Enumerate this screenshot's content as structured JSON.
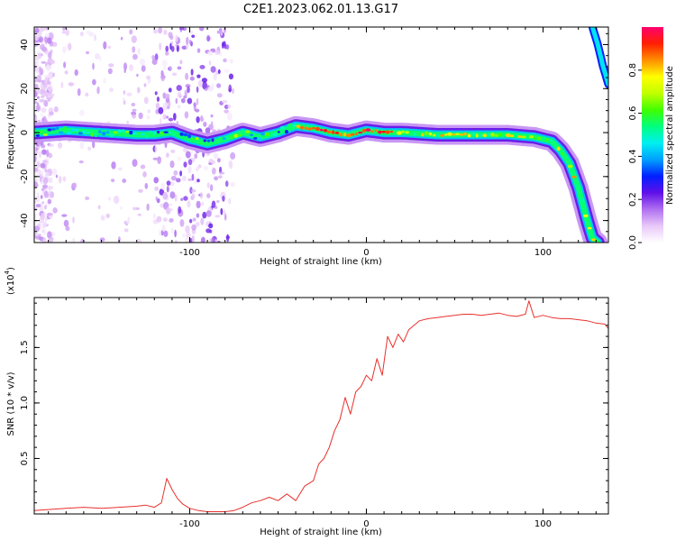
{
  "figure": {
    "title": "C2E1.2023.062.01.13.G17"
  },
  "chart_data": [
    {
      "type": "heatmap",
      "title": "C2E1.2023.062.01.13.G17",
      "xlabel": "Height of straight line (km)",
      "ylabel": "Frequency (Hz)",
      "xlim": [
        -188,
        137
      ],
      "ylim": [
        -50,
        48
      ],
      "xticks": [
        -100,
        0,
        100
      ],
      "xtick_labels": [
        "-100",
        "0",
        "100"
      ],
      "yticks": [
        -40,
        -20,
        0,
        20,
        40
      ],
      "ytick_labels": [
        "-40",
        "-20",
        "0",
        "20",
        "40"
      ],
      "ridge": {
        "x": [
          -188,
          -170,
          -150,
          -130,
          -120,
          -110,
          -100,
          -90,
          -80,
          -70,
          -60,
          -50,
          -40,
          -30,
          -20,
          -10,
          0,
          10,
          20,
          40,
          60,
          80,
          95,
          100,
          105,
          110,
          115,
          120,
          125,
          128,
          131
        ],
        "y": [
          0,
          1,
          0,
          -1,
          -1,
          0,
          -3,
          -5,
          -3,
          0,
          -2,
          0,
          3,
          2,
          0,
          -1,
          1,
          0,
          0,
          -1,
          -1,
          -1,
          -2,
          -3,
          -4,
          -8,
          -14,
          -25,
          -40,
          -48,
          -50
        ]
      },
      "upper_ridge": {
        "x": [
          128,
          131,
          134,
          137
        ],
        "y": [
          48,
          40,
          30,
          22
        ]
      },
      "colorbar": {
        "label": "Normalized spectral amplitude",
        "ticks": [
          0.0,
          0.2,
          0.4,
          0.6,
          0.8
        ],
        "tick_labels": [
          "0.0",
          "0.2",
          "0.4",
          "0.6",
          "0.8"
        ],
        "range": [
          0,
          1
        ],
        "colormap": [
          "#ffffff",
          "#e8c8f8",
          "#b070f0",
          "#6010e8",
          "#0020ff",
          "#00a0ff",
          "#00f0f0",
          "#00ff80",
          "#40ff00",
          "#c0ff00",
          "#ffff00",
          "#ff9000",
          "#ff2000",
          "#ff0070"
        ]
      }
    },
    {
      "type": "line",
      "xlabel": "Height of straight line (km)",
      "ylabel": "SNR (10 * v/v)",
      "scale_label": "(x10",
      "scale_exponent": "4",
      "scale_suffix": ")",
      "xlim": [
        -188,
        137
      ],
      "ylim": [
        0,
        1.95
      ],
      "xticks": [
        -100,
        0,
        100
      ],
      "xtick_labels": [
        "-100",
        "0",
        "100"
      ],
      "yticks": [
        0.5,
        1.0,
        1.5
      ],
      "ytick_labels": [
        "0.5",
        "1.0",
        "1.5"
      ],
      "grid": false,
      "series": [
        {
          "color": "#e8312c",
          "x": [
            -188,
            -180,
            -170,
            -160,
            -150,
            -140,
            -130,
            -125,
            -120,
            -116,
            -113,
            -110,
            -107,
            -104,
            -100,
            -95,
            -90,
            -85,
            -80,
            -75,
            -70,
            -65,
            -60,
            -55,
            -50,
            -45,
            -40,
            -35,
            -30,
            -27,
            -24,
            -21,
            -18,
            -15,
            -12,
            -9,
            -6,
            -3,
            0,
            3,
            6,
            9,
            12,
            15,
            18,
            21,
            24,
            27,
            30,
            35,
            40,
            45,
            50,
            55,
            60,
            65,
            70,
            75,
            80,
            85,
            90,
            92,
            95,
            100,
            105,
            110,
            115,
            120,
            125,
            130,
            135,
            137
          ],
          "y": [
            0.03,
            0.04,
            0.05,
            0.06,
            0.05,
            0.06,
            0.07,
            0.08,
            0.06,
            0.1,
            0.32,
            0.22,
            0.14,
            0.09,
            0.05,
            0.03,
            0.02,
            0.02,
            0.02,
            0.03,
            0.06,
            0.1,
            0.12,
            0.15,
            0.12,
            0.18,
            0.12,
            0.25,
            0.3,
            0.45,
            0.5,
            0.6,
            0.75,
            0.85,
            1.05,
            0.9,
            1.1,
            1.15,
            1.25,
            1.2,
            1.4,
            1.25,
            1.6,
            1.5,
            1.62,
            1.55,
            1.66,
            1.7,
            1.74,
            1.76,
            1.77,
            1.78,
            1.79,
            1.8,
            1.8,
            1.79,
            1.8,
            1.81,
            1.79,
            1.78,
            1.8,
            1.92,
            1.77,
            1.79,
            1.77,
            1.76,
            1.76,
            1.75,
            1.74,
            1.72,
            1.71,
            1.67
          ]
        }
      ]
    }
  ]
}
